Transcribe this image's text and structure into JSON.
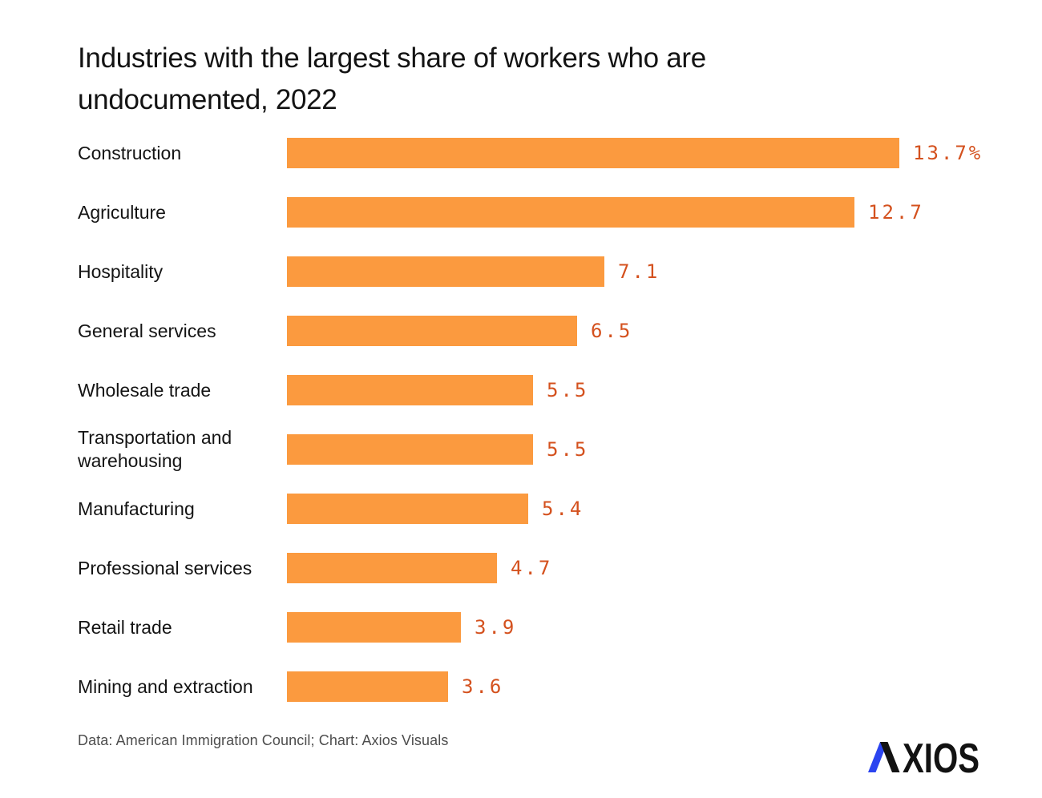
{
  "title": "Industries with the largest share of workers who are undocumented, 2022",
  "chart_data": {
    "type": "bar",
    "orientation": "horizontal",
    "title": "Industries with the largest share of workers who are undocumented, 2022",
    "categories": [
      "Construction",
      "Agriculture",
      "Hospitality",
      "General services",
      "Wholesale trade",
      "Transportation and warehousing",
      "Manufacturing",
      "Professional services",
      "Retail trade",
      "Mining and extraction"
    ],
    "values": [
      13.7,
      12.7,
      7.1,
      6.5,
      5.5,
      5.5,
      5.4,
      4.7,
      3.9,
      3.6
    ],
    "value_labels": [
      "13.7%",
      "12.7",
      "7.1",
      "6.5",
      "5.5",
      "5.5",
      "5.4",
      "4.7",
      "3.9",
      "3.6"
    ],
    "unit": "percent of workers",
    "xlim": [
      0,
      13.7
    ],
    "grid": false,
    "legend": "none",
    "bar_color": "#fb9a3f",
    "value_label_color": "#d4511e"
  },
  "footer": {
    "source": "Data: American Immigration Council; Chart: Axios Visuals"
  },
  "logo": {
    "text": "AXIOS",
    "accent_color": "#2b44f0",
    "main_color": "#121212"
  }
}
